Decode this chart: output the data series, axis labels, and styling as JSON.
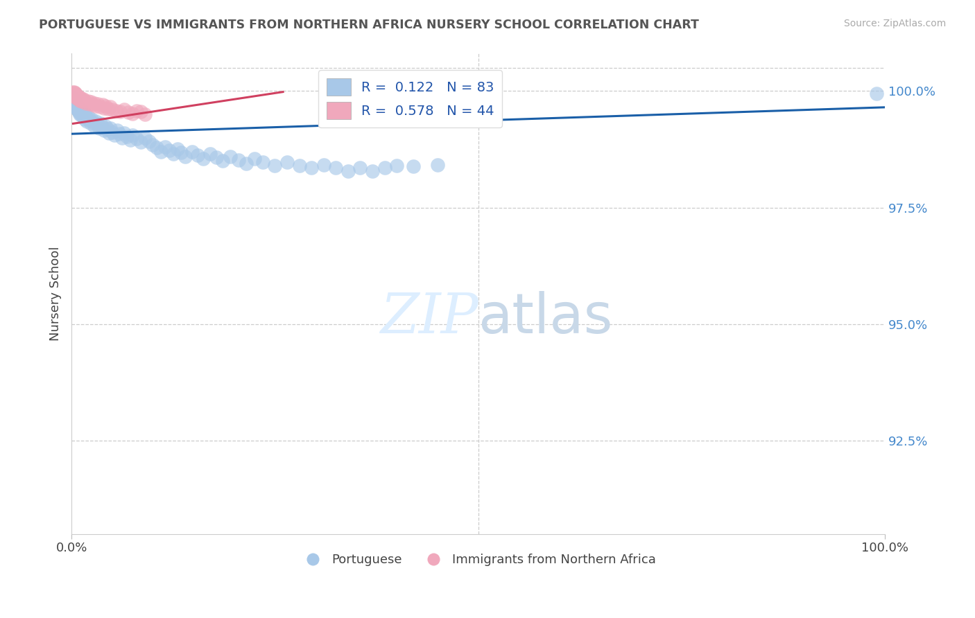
{
  "title": "PORTUGUESE VS IMMIGRANTS FROM NORTHERN AFRICA NURSERY SCHOOL CORRELATION CHART",
  "source": "Source: ZipAtlas.com",
  "ylabel": "Nursery School",
  "xmin": 0.0,
  "xmax": 1.0,
  "ymin": 0.905,
  "ymax": 1.008,
  "yticks": [
    0.925,
    0.95,
    0.975,
    1.0
  ],
  "ytick_labels": [
    "92.5%",
    "95.0%",
    "97.5%",
    "100.0%"
  ],
  "xtick_positions": [
    0.0,
    1.0
  ],
  "xtick_labels": [
    "0.0%",
    "100.0%"
  ],
  "legend_blue_label": "R =  0.122   N = 83",
  "legend_pink_label": "R =  0.578   N = 44",
  "legend_portuguese": "Portuguese",
  "legend_immigrants": "Immigrants from Northern Africa",
  "blue_color": "#a8c8e8",
  "pink_color": "#f0a8bc",
  "blue_line_color": "#1a5fa8",
  "pink_line_color": "#d04060",
  "blue_scatter": [
    [
      0.002,
      0.9985
    ],
    [
      0.003,
      0.998
    ],
    [
      0.004,
      0.9975
    ],
    [
      0.004,
      0.997
    ],
    [
      0.005,
      0.9968
    ],
    [
      0.005,
      0.9965
    ],
    [
      0.006,
      0.9972
    ],
    [
      0.007,
      0.996
    ],
    [
      0.008,
      0.9958
    ],
    [
      0.009,
      0.9955
    ],
    [
      0.01,
      0.9962
    ],
    [
      0.01,
      0.995
    ],
    [
      0.012,
      0.9948
    ],
    [
      0.013,
      0.9952
    ],
    [
      0.014,
      0.9945
    ],
    [
      0.015,
      0.9955
    ],
    [
      0.016,
      0.994
    ],
    [
      0.017,
      0.995
    ],
    [
      0.018,
      0.9942
    ],
    [
      0.019,
      0.9935
    ],
    [
      0.02,
      0.9945
    ],
    [
      0.022,
      0.9938
    ],
    [
      0.024,
      0.993
    ],
    [
      0.025,
      0.994
    ],
    [
      0.027,
      0.9932
    ],
    [
      0.028,
      0.9925
    ],
    [
      0.03,
      0.9935
    ],
    [
      0.032,
      0.9928
    ],
    [
      0.034,
      0.992
    ],
    [
      0.036,
      0.993
    ],
    [
      0.038,
      0.9922
    ],
    [
      0.04,
      0.9915
    ],
    [
      0.042,
      0.9925
    ],
    [
      0.044,
      0.9918
    ],
    [
      0.046,
      0.991
    ],
    [
      0.048,
      0.992
    ],
    [
      0.05,
      0.9912
    ],
    [
      0.053,
      0.9905
    ],
    [
      0.056,
      0.9915
    ],
    [
      0.059,
      0.9908
    ],
    [
      0.062,
      0.99
    ],
    [
      0.065,
      0.991
    ],
    [
      0.068,
      0.9902
    ],
    [
      0.072,
      0.9895
    ],
    [
      0.075,
      0.9905
    ],
    [
      0.08,
      0.9898
    ],
    [
      0.085,
      0.989
    ],
    [
      0.09,
      0.99
    ],
    [
      0.095,
      0.9892
    ],
    [
      0.1,
      0.9885
    ],
    [
      0.105,
      0.9878
    ],
    [
      0.11,
      0.987
    ],
    [
      0.115,
      0.988
    ],
    [
      0.12,
      0.9872
    ],
    [
      0.125,
      0.9865
    ],
    [
      0.13,
      0.9875
    ],
    [
      0.135,
      0.9868
    ],
    [
      0.14,
      0.986
    ],
    [
      0.148,
      0.987
    ],
    [
      0.155,
      0.9862
    ],
    [
      0.162,
      0.9855
    ],
    [
      0.17,
      0.9865
    ],
    [
      0.178,
      0.9858
    ],
    [
      0.186,
      0.985
    ],
    [
      0.195,
      0.986
    ],
    [
      0.205,
      0.9852
    ],
    [
      0.215,
      0.9845
    ],
    [
      0.225,
      0.9855
    ],
    [
      0.235,
      0.9848
    ],
    [
      0.25,
      0.984
    ],
    [
      0.265,
      0.9848
    ],
    [
      0.28,
      0.984
    ],
    [
      0.295,
      0.9835
    ],
    [
      0.31,
      0.9842
    ],
    [
      0.325,
      0.9835
    ],
    [
      0.34,
      0.9828
    ],
    [
      0.355,
      0.9835
    ],
    [
      0.37,
      0.9828
    ],
    [
      0.385,
      0.9835
    ],
    [
      0.4,
      0.984
    ],
    [
      0.42,
      0.9838
    ],
    [
      0.45,
      0.9842
    ],
    [
      0.99,
      0.9995
    ]
  ],
  "pink_scatter": [
    [
      0.002,
      0.9998
    ],
    [
      0.002,
      0.9994
    ],
    [
      0.003,
      0.9998
    ],
    [
      0.003,
      0.9992
    ],
    [
      0.004,
      0.9996
    ],
    [
      0.004,
      0.999
    ],
    [
      0.005,
      0.9994
    ],
    [
      0.005,
      0.9988
    ],
    [
      0.006,
      0.9992
    ],
    [
      0.006,
      0.9986
    ],
    [
      0.007,
      0.999
    ],
    [
      0.007,
      0.9984
    ],
    [
      0.008,
      0.9988
    ],
    [
      0.009,
      0.9982
    ],
    [
      0.01,
      0.9986
    ],
    [
      0.01,
      0.998
    ],
    [
      0.012,
      0.9984
    ],
    [
      0.012,
      0.9978
    ],
    [
      0.014,
      0.9982
    ],
    [
      0.015,
      0.9976
    ],
    [
      0.016,
      0.998
    ],
    [
      0.018,
      0.9974
    ],
    [
      0.02,
      0.9978
    ],
    [
      0.022,
      0.9972
    ],
    [
      0.024,
      0.9976
    ],
    [
      0.026,
      0.997
    ],
    [
      0.028,
      0.9974
    ],
    [
      0.03,
      0.9968
    ],
    [
      0.032,
      0.9972
    ],
    [
      0.035,
      0.9966
    ],
    [
      0.038,
      0.997
    ],
    [
      0.04,
      0.9964
    ],
    [
      0.042,
      0.9968
    ],
    [
      0.045,
      0.9962
    ],
    [
      0.048,
      0.9966
    ],
    [
      0.05,
      0.996
    ],
    [
      0.055,
      0.9958
    ],
    [
      0.06,
      0.9956
    ],
    [
      0.065,
      0.996
    ],
    [
      0.07,
      0.9954
    ],
    [
      0.075,
      0.9952
    ],
    [
      0.08,
      0.9958
    ],
    [
      0.085,
      0.9956
    ],
    [
      0.09,
      0.995
    ]
  ],
  "blue_trend_x": [
    0.0,
    1.0
  ],
  "blue_trend_y": [
    0.9908,
    0.9965
  ],
  "pink_trend_x": [
    0.002,
    0.26
  ],
  "pink_trend_y": [
    0.993,
    0.9998
  ]
}
